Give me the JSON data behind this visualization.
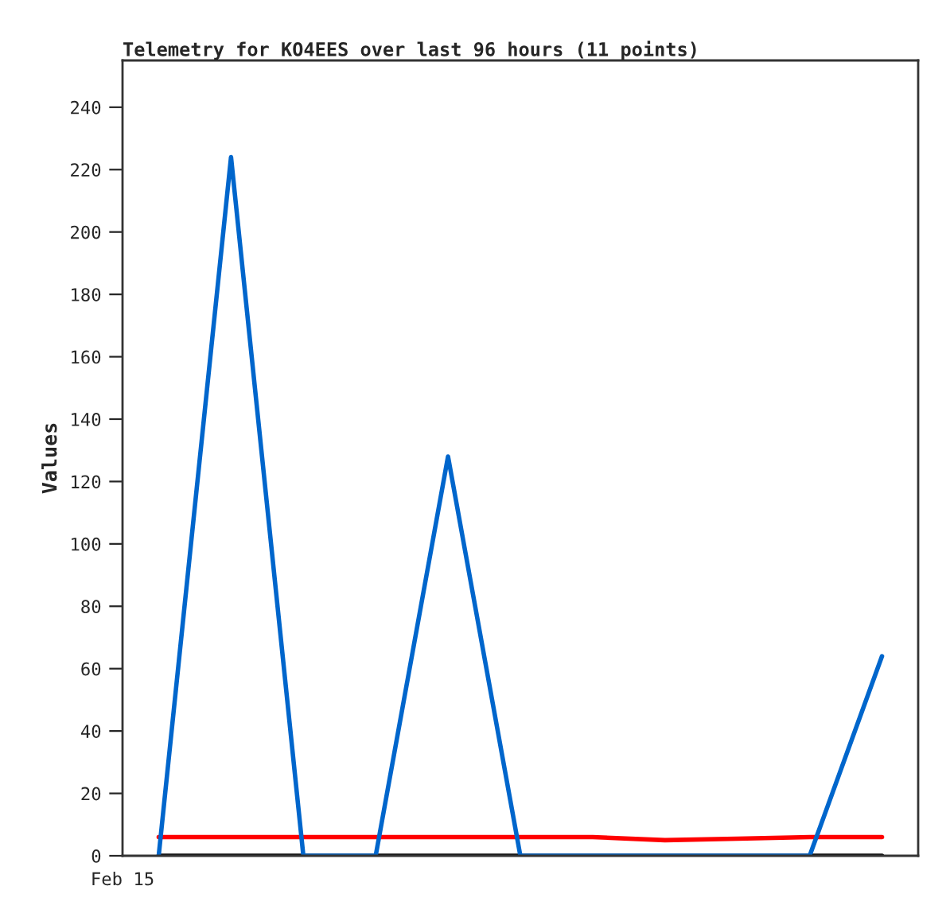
{
  "chart_data": {
    "type": "line",
    "title": "Telemetry for KO4EES over last 96 hours (11 points)",
    "ylabel": "Values",
    "categories": [
      null,
      null,
      null,
      null,
      null,
      null,
      null,
      null,
      null,
      null,
      null
    ],
    "annotations": [
      "Feb 15"
    ],
    "ylim": [
      0,
      255
    ],
    "yticks": [
      0,
      20,
      40,
      60,
      80,
      100,
      120,
      140,
      160,
      180,
      200,
      220,
      240
    ],
    "series": [
      {
        "color": "#000000",
        "values": [
          0,
          0,
          0,
          0,
          0,
          0,
          0,
          0,
          0,
          0,
          0
        ]
      },
      {
        "color": "#ff0000",
        "values": [
          6,
          6,
          6,
          6,
          6,
          6,
          6,
          5,
          5.5,
          6,
          6
        ]
      },
      {
        "color": "#0066cc",
        "values": [
          0,
          224,
          0,
          0,
          128,
          0,
          0,
          0,
          0,
          0,
          64
        ]
      }
    ],
    "grid": false,
    "legend": false,
    "marker": "none",
    "line_style": "solid"
  }
}
